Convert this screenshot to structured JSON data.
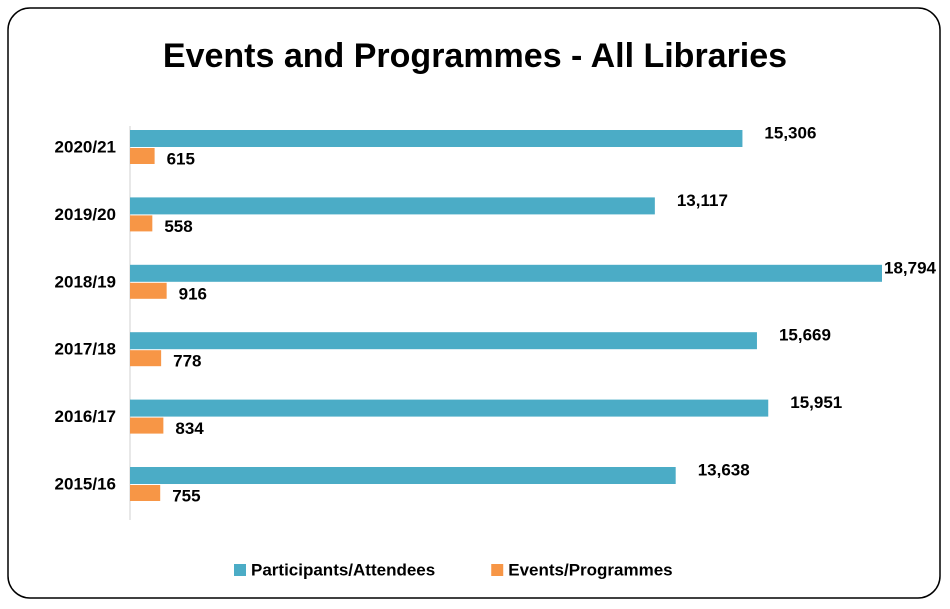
{
  "chart_data": {
    "type": "bar",
    "orientation": "horizontal",
    "title": "Events and Programmes - All Libraries",
    "categories": [
      "2020/21",
      "2019/20",
      "2018/19",
      "2017/18",
      "2016/17",
      "2015/16"
    ],
    "series": [
      {
        "name": "Participants/Attendees",
        "color": "#4bacc6",
        "values": [
          15306,
          13117,
          18794,
          15669,
          15951,
          13638
        ],
        "value_labels": [
          "15,306",
          "13,117",
          "18,794",
          "15,669",
          "15,951",
          "13,638"
        ]
      },
      {
        "name": "Events/Programmes",
        "color": "#f79646",
        "values": [
          615,
          558,
          916,
          778,
          834,
          755
        ]
      }
    ],
    "legend": "bottom"
  }
}
